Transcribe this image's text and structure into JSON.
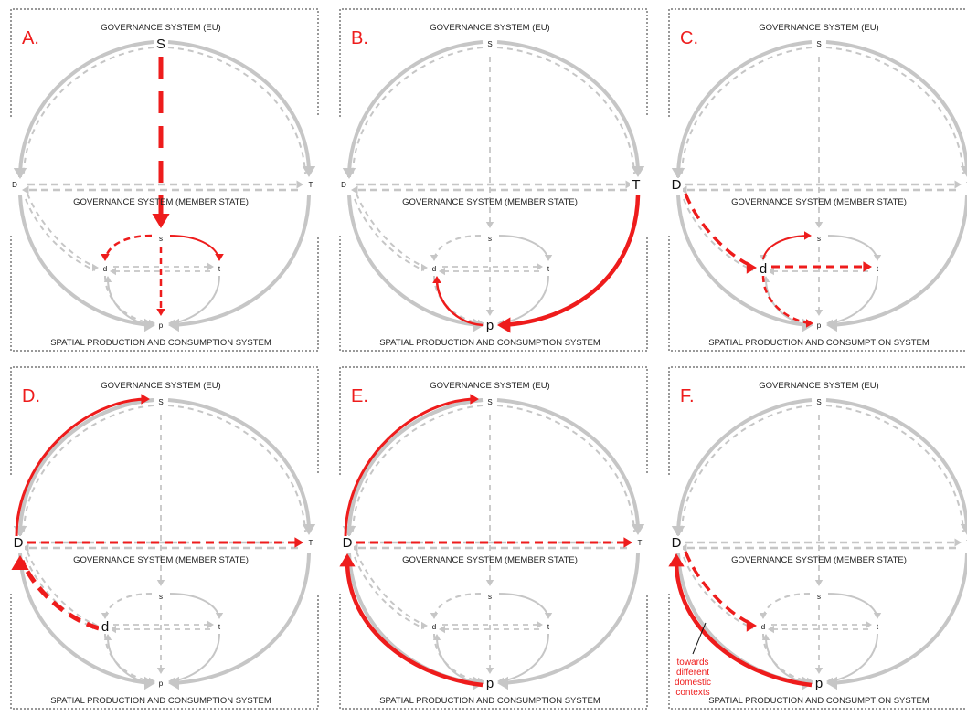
{
  "colors": {
    "grey": "#c6c6c6",
    "red": "#ee1c1c",
    "dash_frame": "#333333",
    "label": "#222222"
  },
  "labels": {
    "eu": "GOVERNANCE SYSTEM (EU)",
    "ms": "GOVERNANCE SYSTEM (MEMBER STATE)",
    "spc": "SPATIAL PRODUCTION AND CONSUMPTION SYSTEM",
    "node_S": "S",
    "node_s": "s",
    "node_D": "D",
    "node_T": "T",
    "node_d": "d",
    "node_t": "t",
    "node_p": "p"
  },
  "panels": [
    {
      "letter": "A.",
      "big": [
        "S"
      ],
      "red": [
        "S-s",
        "s-d",
        "s-t",
        "s-p"
      ],
      "annotation": ""
    },
    {
      "letter": "B.",
      "big": [
        "T",
        "p"
      ],
      "red": [
        "T-p",
        "p-d"
      ],
      "annotation": ""
    },
    {
      "letter": "C.",
      "big": [
        "D",
        "d"
      ],
      "red": [
        "D-d",
        "d-s",
        "d-t",
        "d-p"
      ],
      "annotation": ""
    },
    {
      "letter": "D.",
      "big": [
        "D",
        "d"
      ],
      "red": [
        "D-S",
        "D-T",
        "d-D"
      ],
      "annotation": ""
    },
    {
      "letter": "E.",
      "big": [
        "D",
        "p"
      ],
      "red": [
        "D-S",
        "D-T",
        "p-D"
      ],
      "annotation": ""
    },
    {
      "letter": "F.",
      "big": [
        "D",
        "p"
      ],
      "red": [
        "p-D",
        "D-d"
      ],
      "annotation": "towards different domestic contexts"
    }
  ]
}
